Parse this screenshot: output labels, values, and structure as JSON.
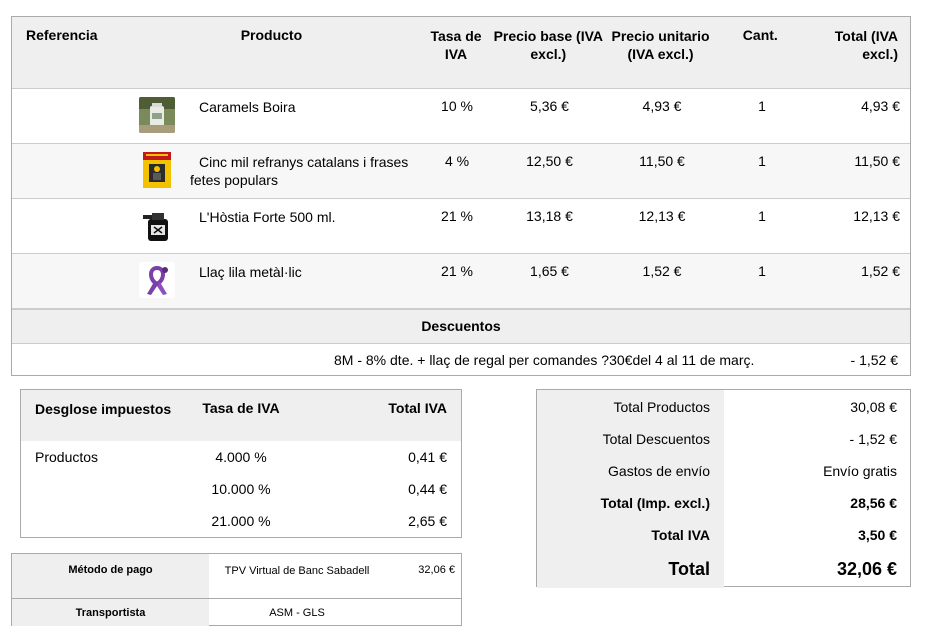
{
  "table": {
    "headers": {
      "ref": "Referencia",
      "product": "Producto",
      "tax": "Tasa de IVA",
      "base": "Precio base (IVA excl.)",
      "unit": "Precio unitario (IVA excl.)",
      "qty": "Cant.",
      "total": "Total (IVA excl.)"
    },
    "items": [
      {
        "name": "Caramels Boira",
        "tax": "10 %",
        "base": "5,36 €",
        "unit": "4,93 €",
        "qty": "1",
        "total": "4,93 €"
      },
      {
        "name": "Cinc mil refranys catalans i frases fetes populars",
        "tax": "4 %",
        "base": "12,50 €",
        "unit": "11,50 €",
        "qty": "1",
        "total": "11,50 €"
      },
      {
        "name": "L'Hòstia Forte 500 ml.",
        "tax": "21 %",
        "base": "13,18 €",
        "unit": "12,13 €",
        "qty": "1",
        "total": "12,13 €"
      },
      {
        "name": "Llaç lila metàl·lic",
        "tax": "21 %",
        "base": "1,65 €",
        "unit": "1,52 €",
        "qty": "1",
        "total": "1,52 €"
      }
    ],
    "discounts_title": "Descuentos",
    "discount": {
      "name": "8M - 8% dte. + llaç de regal per comandes ?30€del 4 al 11 de març.",
      "value": "- 1,52 €"
    }
  },
  "tax_breakdown": {
    "headers": {
      "label": "Desglose impuestos",
      "rate": "Tasa de IVA",
      "total": "Total IVA"
    },
    "category": "Productos",
    "rows": [
      {
        "rate": "4.000 %",
        "total": "0,41 €"
      },
      {
        "rate": "10.000 %",
        "total": "0,44 €"
      },
      {
        "rate": "21.000 %",
        "total": "2,65 €"
      }
    ]
  },
  "payment": {
    "method_label": "Método de pago",
    "method_value": "TPV Virtual de Banc Sabadell",
    "method_amount": "32,06 €",
    "carrier_label": "Transportista",
    "carrier_value": "ASM - GLS"
  },
  "totals": {
    "products_label": "Total Productos",
    "products_value": "30,08 €",
    "discounts_label": "Total Descuentos",
    "discounts_value": "- 1,52 €",
    "shipping_label": "Gastos de envío",
    "shipping_value": "Envío gratis",
    "excl_label": "Total (Imp. excl.)",
    "excl_value": "28,56 €",
    "vat_label": "Total IVA",
    "vat_value": "3,50 €",
    "grand_label": "Total",
    "grand_value": "32,06 €"
  },
  "icons": [
    "candy-jar-thumbnail",
    "book-cover-thumbnail",
    "bottle-thumbnail",
    "purple-ribbon-thumbnail"
  ]
}
